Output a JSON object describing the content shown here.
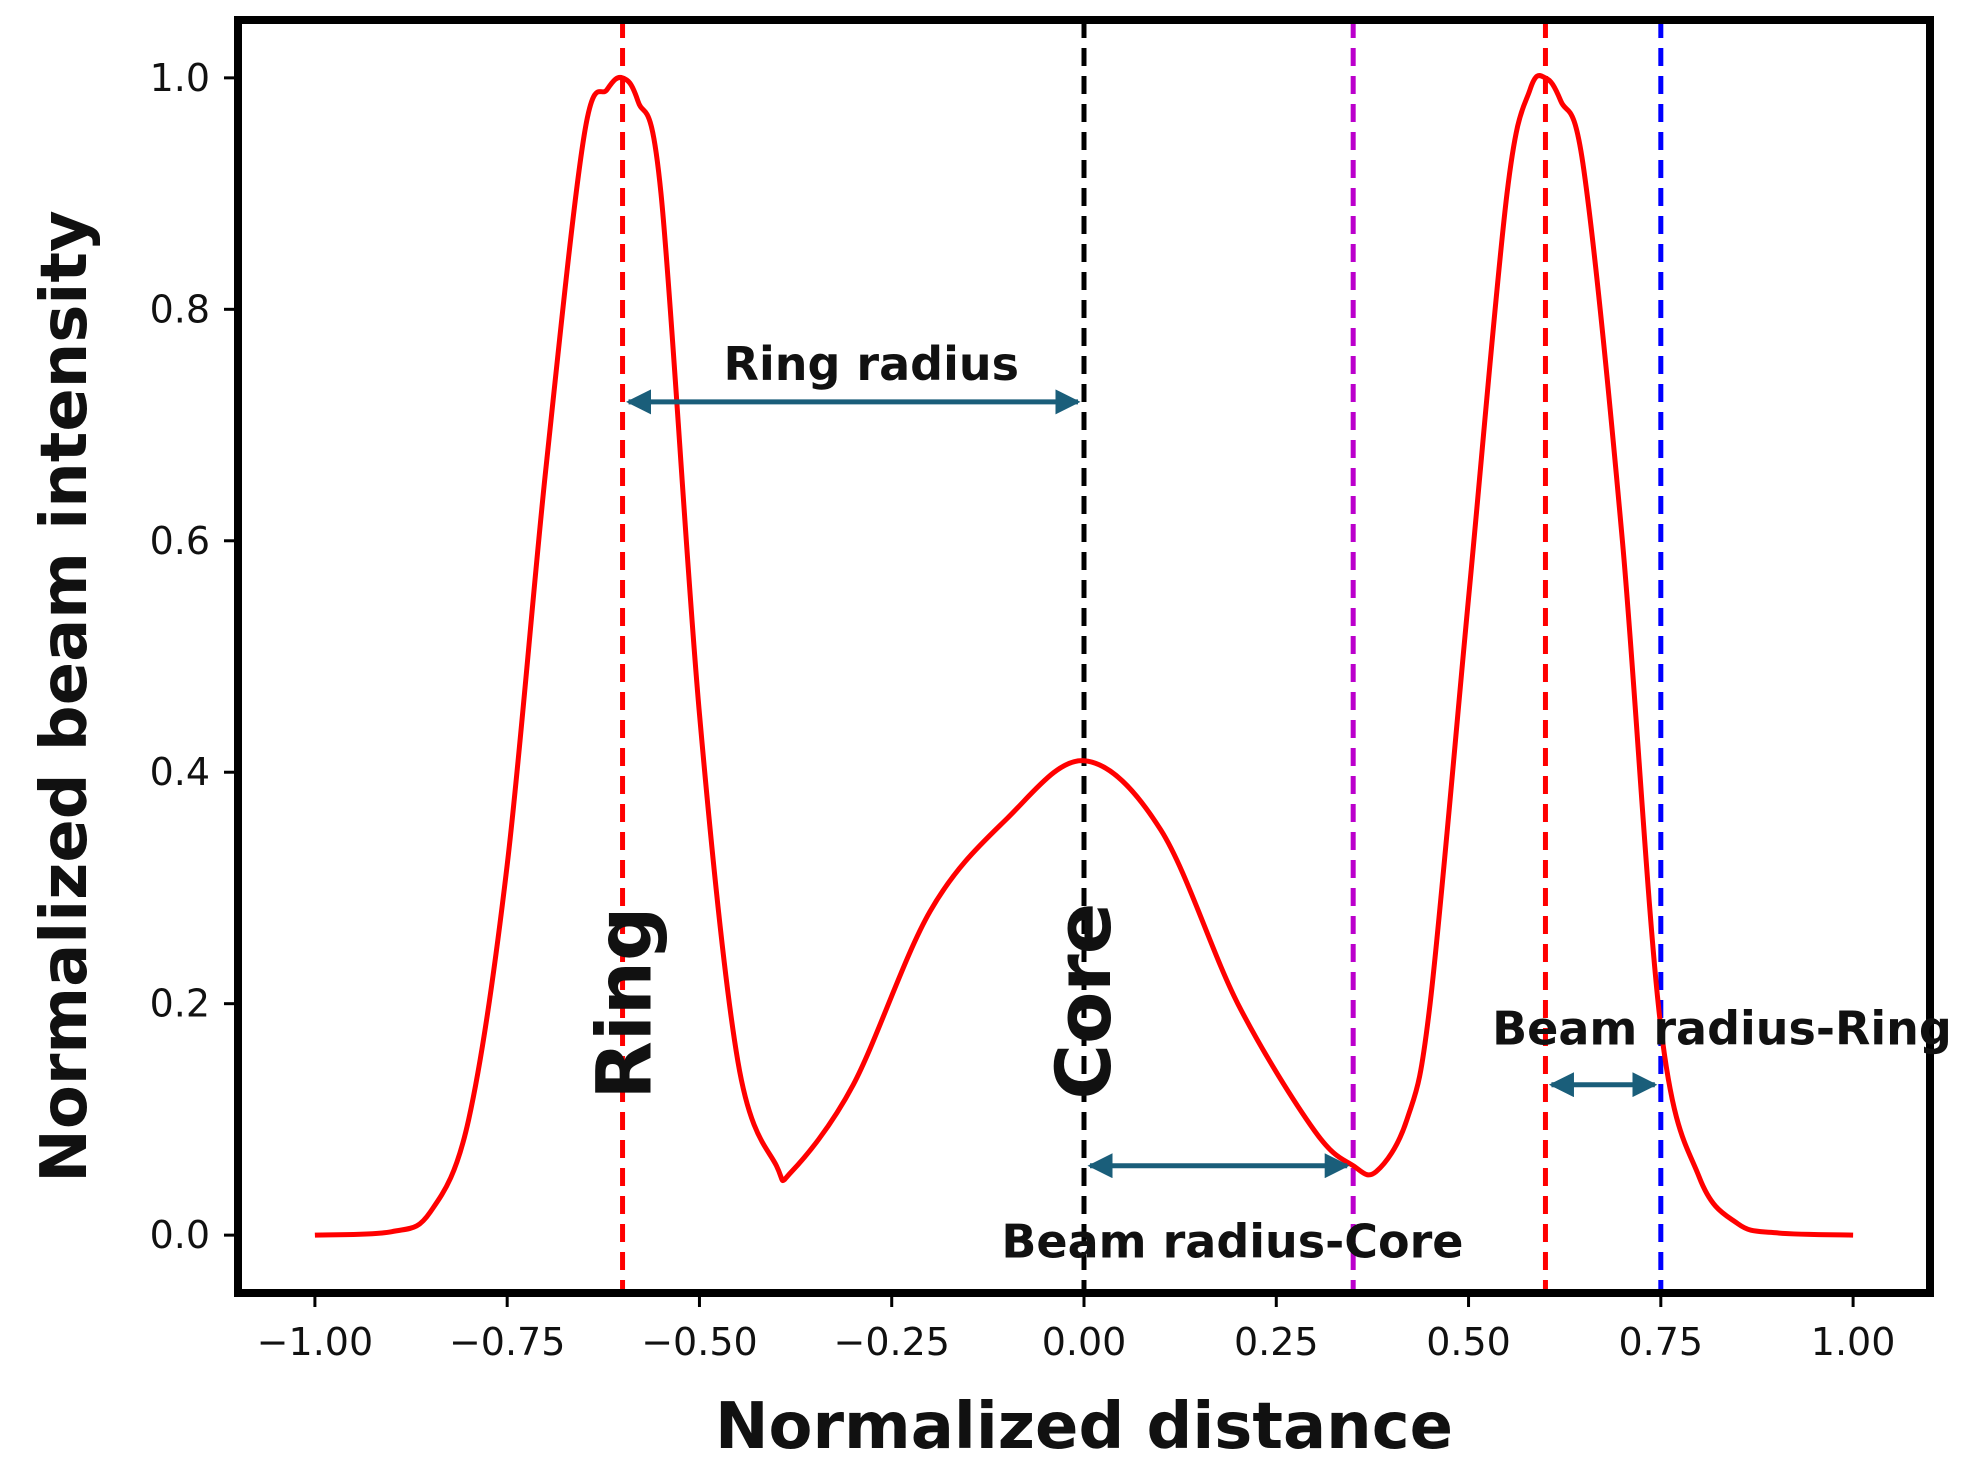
{
  "chart_data": {
    "type": "line",
    "title": "",
    "xlabel": "Normalized distance",
    "ylabel": "Normalized beam intensity",
    "xlim": [
      -1.1,
      1.1
    ],
    "ylim": [
      -0.05,
      1.05
    ],
    "x_ticks": [
      -1.0,
      -0.75,
      -0.5,
      -0.25,
      0.0,
      0.25,
      0.5,
      0.75,
      1.0
    ],
    "x_tick_labels": [
      "−1.00",
      "−0.75",
      "−0.50",
      "−0.25",
      "0.00",
      "0.25",
      "0.50",
      "0.75",
      "1.00"
    ],
    "y_ticks": [
      0.0,
      0.2,
      0.4,
      0.6,
      0.8,
      1.0
    ],
    "y_tick_labels": [
      "0.0",
      "0.2",
      "0.4",
      "0.6",
      "0.8",
      "1.0"
    ],
    "grid": false,
    "series": [
      {
        "color": "#ff0000",
        "x": [
          -1.0,
          -0.9,
          -0.85,
          -0.8,
          -0.75,
          -0.7,
          -0.65,
          -0.62,
          -0.6,
          -0.58,
          -0.55,
          -0.5,
          -0.45,
          -0.4,
          -0.38,
          -0.3,
          -0.2,
          -0.1,
          0.0,
          0.1,
          0.2,
          0.3,
          0.35,
          0.38,
          0.42,
          0.45,
          0.5,
          0.55,
          0.58,
          0.6,
          0.62,
          0.65,
          0.7,
          0.75,
          0.8,
          0.85,
          0.9,
          1.0
        ],
        "y": [
          0.0,
          0.003,
          0.02,
          0.1,
          0.32,
          0.66,
          0.95,
          0.99,
          1.0,
          0.98,
          0.9,
          0.45,
          0.15,
          0.06,
          0.055,
          0.13,
          0.28,
          0.36,
          0.41,
          0.35,
          0.2,
          0.09,
          0.06,
          0.055,
          0.1,
          0.2,
          0.55,
          0.9,
          0.99,
          1.0,
          0.98,
          0.92,
          0.6,
          0.18,
          0.05,
          0.01,
          0.002,
          0.0
        ]
      }
    ],
    "vlines": [
      {
        "name": "ring-left",
        "x": -0.6,
        "color": "#ff0000"
      },
      {
        "name": "core",
        "x": 0.0,
        "color": "#000000"
      },
      {
        "name": "beam-core",
        "x": 0.35,
        "color": "#bb00cc"
      },
      {
        "name": "ring-right",
        "x": 0.6,
        "color": "#ff0000"
      },
      {
        "name": "beam-ring",
        "x": 0.75,
        "color": "#0000ff"
      }
    ],
    "arrows": [
      {
        "name": "ring-radius",
        "x1": -0.6,
        "x2": 0.0,
        "y": 0.72,
        "color": "#1a5e7a"
      },
      {
        "name": "beam-radius-core",
        "x1": 0.0,
        "x2": 0.35,
        "y": 0.06,
        "color": "#1a5e7a"
      },
      {
        "name": "beam-radius-ring",
        "x1": 0.6,
        "x2": 0.75,
        "y": 0.13,
        "color": "#1a5e7a"
      }
    ],
    "annotations": {
      "ring_radius": "Ring radius",
      "beam_radius_core": "Beam radius-Core",
      "beam_radius_ring": "Beam radius-Ring",
      "ring": "Ring",
      "core": "Core"
    }
  }
}
